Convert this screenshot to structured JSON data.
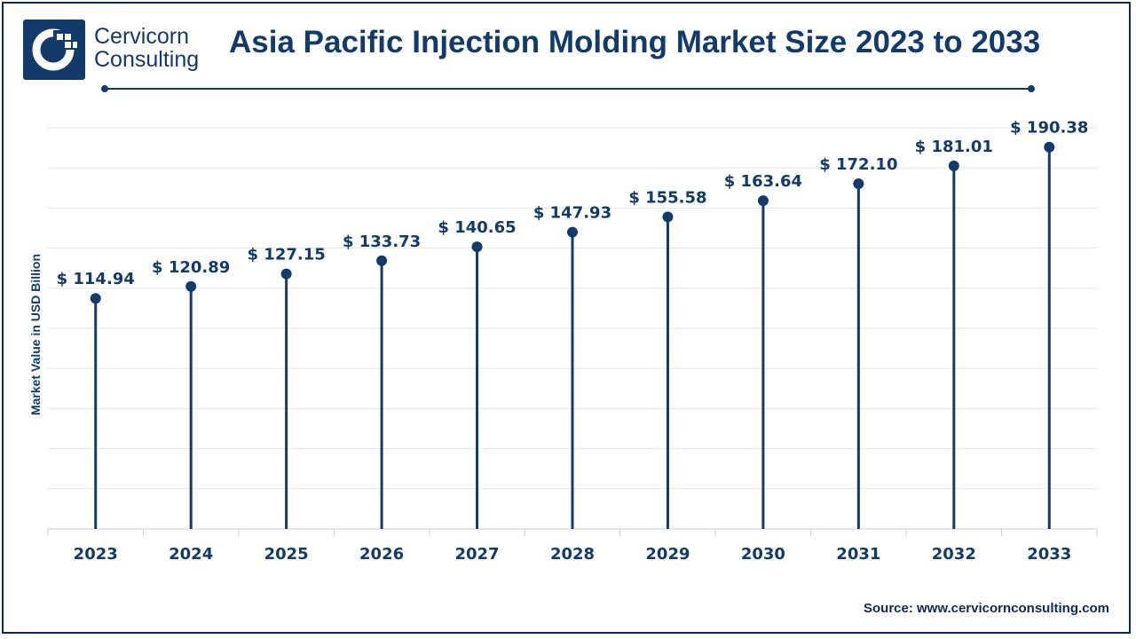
{
  "brand": {
    "line1": "Cervicorn",
    "line2": "Consulting"
  },
  "title": "Asia Pacific Injection Molding Market Size 2023 to 2033",
  "source": "Source: www.cervicornconsulting.com",
  "colors": {
    "primary": "#123a6b",
    "grid": "#e3e6ea",
    "axis": "#c9ced6"
  },
  "chart_data": {
    "type": "lollipop",
    "ylabel": "Market Value in USD Billion",
    "categories": [
      "2023",
      "2024",
      "2025",
      "2026",
      "2027",
      "2028",
      "2029",
      "2030",
      "2031",
      "2032",
      "2033"
    ],
    "values": [
      114.94,
      120.89,
      127.15,
      133.73,
      140.65,
      147.93,
      155.58,
      163.64,
      172.1,
      181.01,
      190.38
    ],
    "labels": [
      "$ 114.94",
      "$ 120.89",
      "$ 127.15",
      "$ 133.73",
      "$ 140.65",
      "$ 147.93",
      "$ 155.58",
      "$ 163.64",
      "$ 172.10",
      "$ 181.01",
      "$ 190.38"
    ],
    "ylim": [
      0,
      200
    ],
    "grid": true
  }
}
